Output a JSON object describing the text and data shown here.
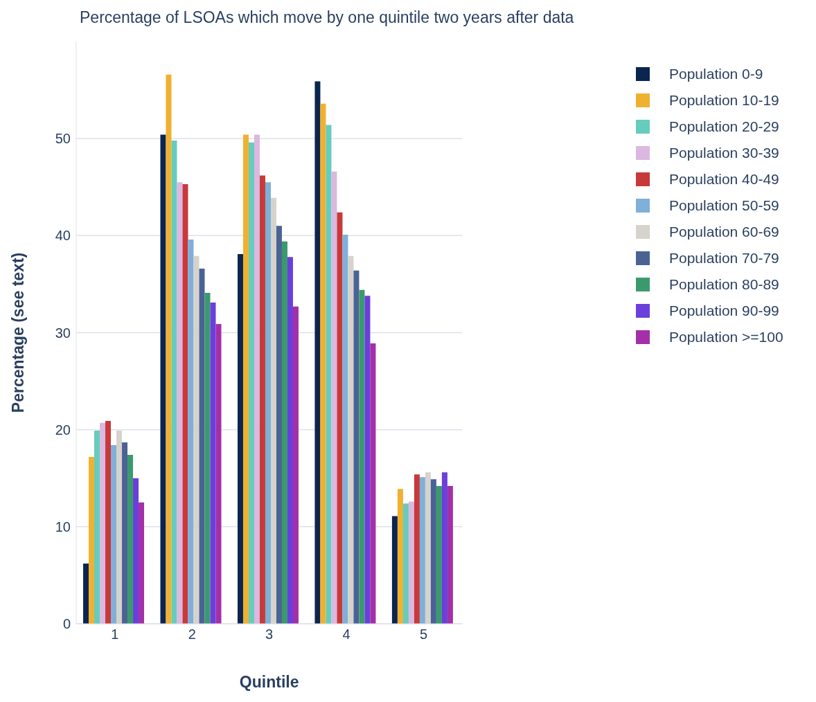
{
  "chart_data": {
    "type": "bar",
    "title": "Percentage of LSOAs which move by one quintile two years after data",
    "xlabel": "Quintile",
    "ylabel": "Percentage (see text)",
    "categories": [
      "1",
      "2",
      "3",
      "4",
      "5"
    ],
    "ylim": [
      0,
      60
    ],
    "yticks": [
      0,
      10,
      20,
      30,
      40,
      50
    ],
    "grid": "y",
    "legend": "top right",
    "series": [
      {
        "name": "Population 0-9",
        "color": "#0b2550",
        "values": [
          6.2,
          50.4,
          38.1,
          55.9,
          11.1
        ]
      },
      {
        "name": "Population 10-19",
        "color": "#f0b030",
        "values": [
          17.2,
          56.6,
          50.4,
          53.6,
          13.9
        ]
      },
      {
        "name": "Population 20-29",
        "color": "#66ccbb",
        "values": [
          19.9,
          49.8,
          49.6,
          51.4,
          12.4
        ]
      },
      {
        "name": "Population 30-39",
        "color": "#dbb8e0",
        "values": [
          20.7,
          45.5,
          50.4,
          46.6,
          12.6
        ]
      },
      {
        "name": "Population 40-49",
        "color": "#c8393a",
        "values": [
          20.9,
          45.3,
          46.2,
          42.4,
          15.4
        ]
      },
      {
        "name": "Population 50-59",
        "color": "#7eb0d9",
        "values": [
          18.4,
          39.6,
          45.5,
          40.1,
          15.1
        ]
      },
      {
        "name": "Population 60-69",
        "color": "#d6d2cc",
        "values": [
          19.9,
          37.9,
          43.9,
          37.9,
          15.6
        ]
      },
      {
        "name": "Population 70-79",
        "color": "#4b6394",
        "values": [
          18.7,
          36.6,
          41.0,
          36.4,
          14.9
        ]
      },
      {
        "name": "Population 80-89",
        "color": "#3a9a6e",
        "values": [
          17.4,
          34.1,
          39.4,
          34.4,
          14.2
        ]
      },
      {
        "name": "Population 90-99",
        "color": "#6a3fdb",
        "values": [
          15.0,
          33.1,
          37.8,
          33.8,
          15.6
        ]
      },
      {
        "name": "Population >=100",
        "color": "#a330a8",
        "values": [
          12.5,
          30.9,
          32.7,
          28.9,
          14.2
        ]
      }
    ]
  }
}
